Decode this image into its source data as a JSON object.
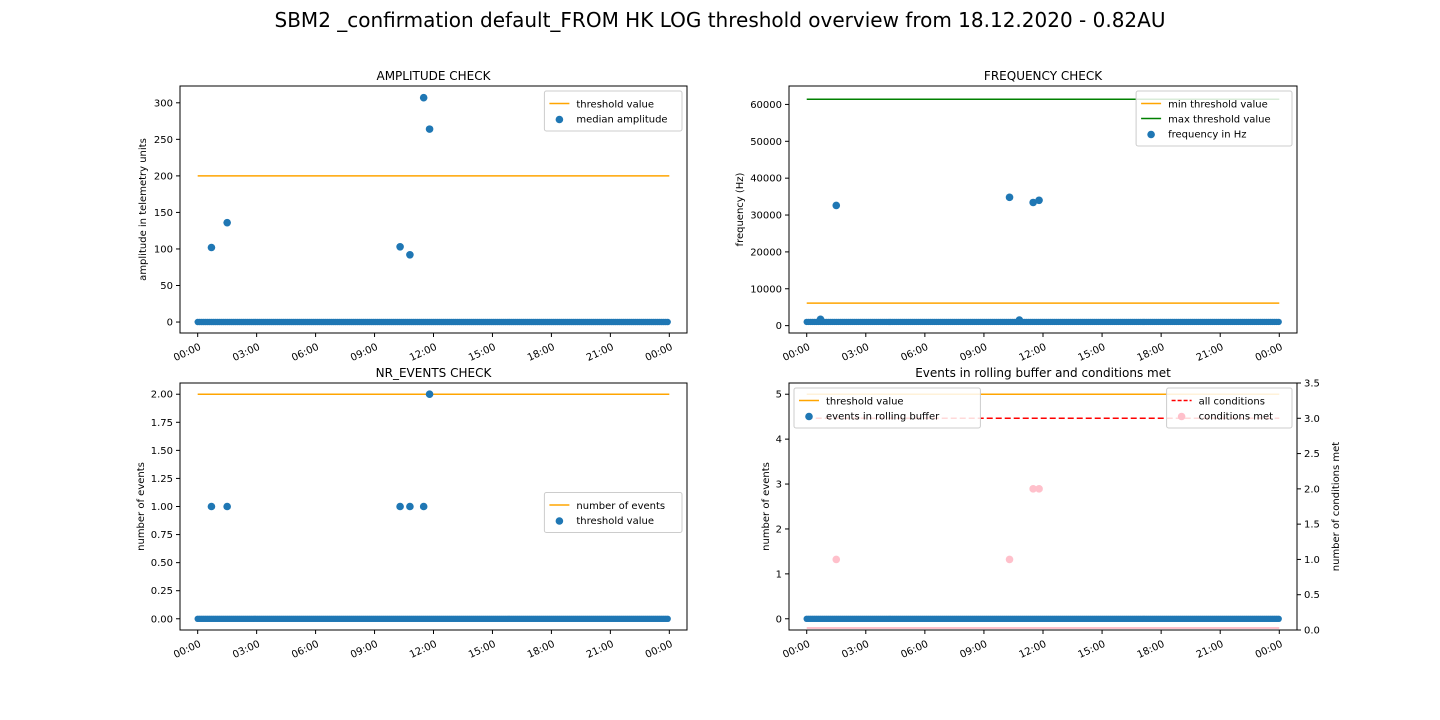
{
  "suptitle": "SBM2 _confirmation default_FROM HK LOG threshold overview from 18.12.2020 - 0.82AU",
  "colors": {
    "series_blue": "#1f77b4",
    "threshold_orange": "#ffa500",
    "max_green": "#008000",
    "all_conditions_red": "#ff0000",
    "conditions_pink": "#ffc0cb"
  },
  "x_axis": {
    "type": "time",
    "range_hours": [
      -0.9,
      24.9
    ],
    "ticks_hours": [
      0,
      3,
      6,
      9,
      12,
      15,
      18,
      21,
      24
    ],
    "tick_labels": [
      "00:00",
      "03:00",
      "06:00",
      "09:00",
      "12:00",
      "15:00",
      "18:00",
      "21:00",
      "00:00"
    ],
    "tick_rotation_deg": -25
  },
  "chart_data": [
    {
      "id": "amplitude",
      "type": "scatter",
      "title": "AMPLITUDE CHECK",
      "ylabel": "amplitude in telemetry units",
      "ylim": [
        -15,
        323
      ],
      "yticks": [
        0,
        50,
        100,
        150,
        200,
        250,
        300
      ],
      "ytick_labels": [
        "0",
        "50",
        "100",
        "150",
        "200",
        "250",
        "300"
      ],
      "legend_placement": "upper right",
      "legend": [
        "threshold value",
        "median amplitude"
      ],
      "lines": [
        {
          "name": "threshold value",
          "color": "#ffa500",
          "dashed": false,
          "x_hours": [
            0,
            24
          ],
          "y": [
            200,
            200
          ]
        }
      ],
      "series": [
        {
          "name": "median amplitude",
          "color": "#1f77b4",
          "baseline": {
            "y": 0,
            "x_from": 0,
            "x_to": 24
          },
          "x_hours": [
            0.7,
            1.5,
            10.3,
            10.8,
            11.5,
            11.8
          ],
          "y": [
            102,
            136,
            103,
            92,
            307,
            264
          ]
        }
      ]
    },
    {
      "id": "frequency",
      "type": "scatter",
      "title": "FREQUENCY CHECK",
      "ylabel": "frequency (Hz)",
      "ylim": [
        -2000,
        65000
      ],
      "yticks": [
        0,
        10000,
        20000,
        30000,
        40000,
        50000,
        60000
      ],
      "ytick_labels": [
        "0",
        "10000",
        "20000",
        "30000",
        "40000",
        "50000",
        "60000"
      ],
      "legend_placement": "upper right",
      "legend": [
        "min threshold value",
        "max threshold value",
        "frequency in Hz"
      ],
      "lines": [
        {
          "name": "min threshold value",
          "color": "#ffa500",
          "dashed": false,
          "x_hours": [
            0,
            24
          ],
          "y": [
            6100,
            6100
          ]
        },
        {
          "name": "max threshold value",
          "color": "#008000",
          "dashed": false,
          "x_hours": [
            0,
            24
          ],
          "y": [
            61400,
            61400
          ]
        }
      ],
      "series": [
        {
          "name": "frequency in Hz",
          "color": "#1f77b4",
          "baseline": {
            "y": 1000,
            "x_from": 0,
            "x_to": 24
          },
          "x_hours": [
            0.7,
            1.5,
            10.3,
            10.8,
            11.5,
            11.8
          ],
          "y": [
            1700,
            32600,
            34800,
            1500,
            33400,
            34000
          ]
        }
      ]
    },
    {
      "id": "nr_events",
      "type": "scatter",
      "title": "NR_EVENTS CHECK",
      "ylabel": "number of events",
      "ylim": [
        -0.1,
        2.1
      ],
      "yticks": [
        0,
        0.25,
        0.5,
        0.75,
        1.0,
        1.25,
        1.5,
        1.75,
        2.0
      ],
      "ytick_labels": [
        "0.00",
        "0.25",
        "0.50",
        "0.75",
        "1.00",
        "1.25",
        "1.50",
        "1.75",
        "2.00"
      ],
      "legend_placement": "center right",
      "legend": [
        "number of events",
        "threshold value"
      ],
      "lines": [
        {
          "name": "number of events",
          "color": "#ffa500",
          "dashed": false,
          "x_hours": [
            0,
            24
          ],
          "y": [
            2,
            2
          ]
        }
      ],
      "series": [
        {
          "name": "threshold value",
          "color": "#1f77b4",
          "baseline": {
            "y": 0,
            "x_from": 0,
            "x_to": 24
          },
          "x_hours": [
            0.7,
            1.5,
            10.3,
            10.8,
            11.5,
            11.8
          ],
          "y": [
            1,
            1,
            1,
            1,
            1,
            2
          ]
        }
      ]
    },
    {
      "id": "rolling_buffer",
      "type": "scatter",
      "title": "Events in rolling buffer and conditions met",
      "ylabel": "number of events",
      "ylabel_right": "number of conditions met",
      "ylim": [
        -0.25,
        5.25
      ],
      "yticks": [
        0,
        1,
        2,
        3,
        4,
        5
      ],
      "ytick_labels": [
        "0",
        "1",
        "2",
        "3",
        "4",
        "5"
      ],
      "ylim_right": [
        0,
        3.5
      ],
      "yticks_right": [
        0,
        0.5,
        1.0,
        1.5,
        2.0,
        2.5,
        3.0,
        3.5
      ],
      "ytick_labels_right": [
        "0.0",
        "0.5",
        "1.0",
        "1.5",
        "2.0",
        "2.5",
        "3.0",
        "3.5"
      ],
      "legend_placement": "upper left",
      "legend": [
        "threshold value",
        "events in rolling buffer"
      ],
      "legend_right_placement": "upper right",
      "legend_right": [
        "all conditions",
        "conditions met"
      ],
      "lines": [
        {
          "name": "threshold value",
          "color": "#ffa500",
          "dashed": false,
          "x_hours": [
            0,
            24
          ],
          "y": [
            5,
            5
          ]
        }
      ],
      "lines_right": [
        {
          "name": "all conditions",
          "color": "#ff0000",
          "dashed": true,
          "x_hours": [
            0,
            24
          ],
          "y": [
            3,
            3
          ]
        }
      ],
      "series": [
        {
          "name": "events in rolling buffer",
          "color": "#1f77b4",
          "baseline": {
            "y": 0,
            "x_from": 0,
            "x_to": 24
          },
          "x_hours": [],
          "y": []
        }
      ],
      "series_right": [
        {
          "name": "conditions met",
          "color": "#ffc0cb",
          "baseline": {
            "y": 0,
            "x_from": 0,
            "x_to": 24
          },
          "x_hours": [
            1.5,
            10.3,
            11.5,
            11.8
          ],
          "y": [
            1,
            1,
            2,
            2
          ]
        }
      ]
    }
  ]
}
